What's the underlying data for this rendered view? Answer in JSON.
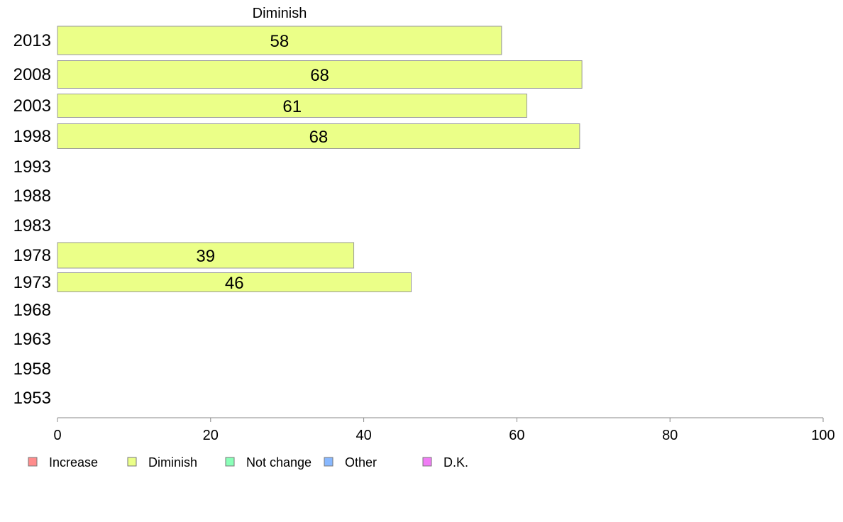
{
  "chart_data": {
    "type": "bar",
    "orientation": "horizontal",
    "title": "Diminish",
    "xlabel": "",
    "ylabel": "",
    "xlim": [
      0,
      100
    ],
    "x_ticks": [
      "0",
      "20",
      "40",
      "60",
      "80",
      "100"
    ],
    "grid": false,
    "categories": [
      "2013",
      "2008",
      "2003",
      "1998",
      "1993",
      "1988",
      "1983",
      "1978",
      "1973",
      "1968",
      "1963",
      "1958",
      "1953"
    ],
    "series": [
      {
        "name": "Diminish",
        "color": "#ebff88",
        "values": [
          58,
          68.5,
          61.3,
          68.2,
          null,
          null,
          null,
          38.7,
          46.2,
          null,
          null,
          null,
          null
        ],
        "labels": [
          "58",
          "68",
          "61",
          "68",
          "",
          "",
          "",
          "39",
          "46",
          "",
          "",
          "",
          ""
        ]
      }
    ],
    "legend_position": "bottom",
    "legend": [
      {
        "name": "Increase",
        "color": "#ff8c8c"
      },
      {
        "name": "Diminish",
        "color": "#ebff88"
      },
      {
        "name": "Not change",
        "color": "#8affb8"
      },
      {
        "name": "Other",
        "color": "#88b8ff"
      },
      {
        "name": "D.K.",
        "color": "#f07cf5"
      }
    ]
  }
}
